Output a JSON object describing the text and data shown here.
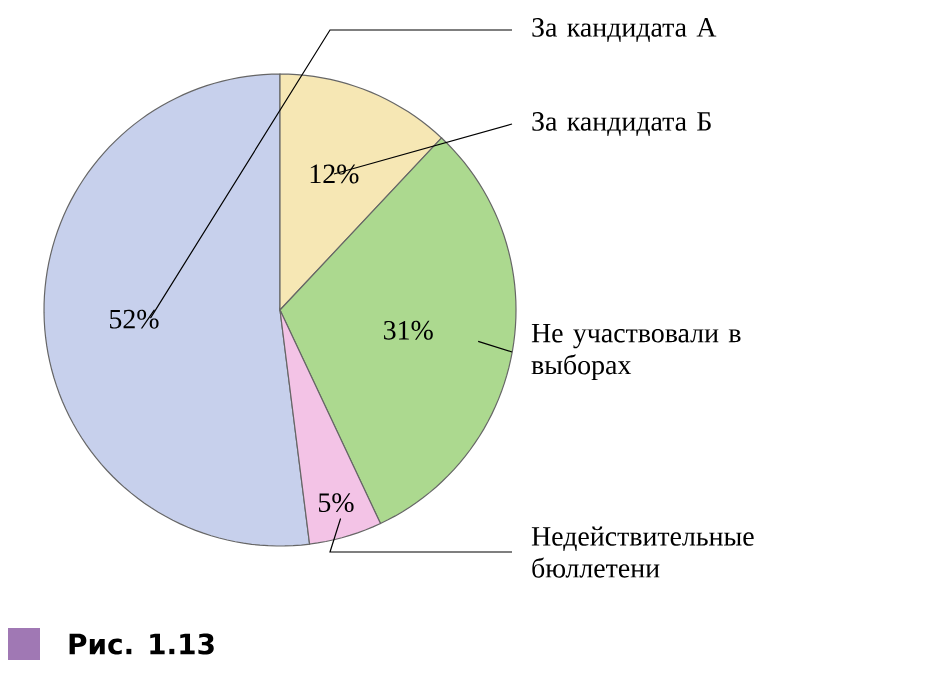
{
  "chart_data": {
    "type": "pie",
    "categories": [
      "За кандидата А",
      "За кандидата Б",
      "Не участвовали в выборах",
      "Недействительные бюллетени"
    ],
    "values": [
      52,
      12,
      31,
      5
    ],
    "value_labels": [
      "52%",
      "12%",
      "31%",
      "5%"
    ],
    "data_labels": true,
    "colors": [
      "#c7d0ec",
      "#f6e7b4",
      "#acd98f",
      "#f3c3e6"
    ],
    "annotations": [
      "Рис. 1.13"
    ]
  }
}
